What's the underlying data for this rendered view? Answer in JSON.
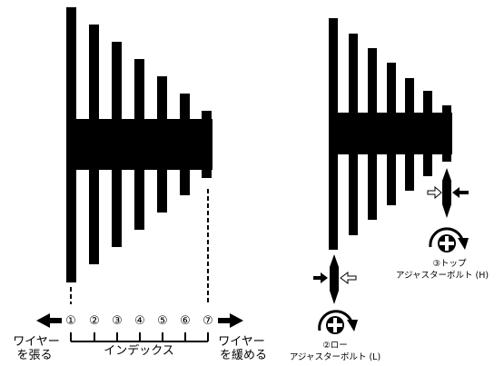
{
  "left": {
    "index_numbers": [
      "①",
      "②",
      "③",
      "④",
      "⑤",
      "⑥",
      "⑦"
    ],
    "scale_label": "インデックス",
    "tighten_label_1": "ワイヤー",
    "tighten_label_2": "を張る",
    "loosen_label_1": "ワイヤー",
    "loosen_label_2": "を緩める"
  },
  "right": {
    "top_adjuster_title": "③トップ",
    "top_adjuster_name": "アジャスターボルト (H)",
    "low_adjuster_title": "②ロー",
    "low_adjuster_name": "アジャスターボルト (L)"
  },
  "icons": {
    "arrow_left": "arrow-left-icon",
    "arrow_right": "arrow-right-icon",
    "adjust_bolt": "adjust-bolt-icon",
    "adjust_pointer": "adjust-pointer-icon"
  }
}
